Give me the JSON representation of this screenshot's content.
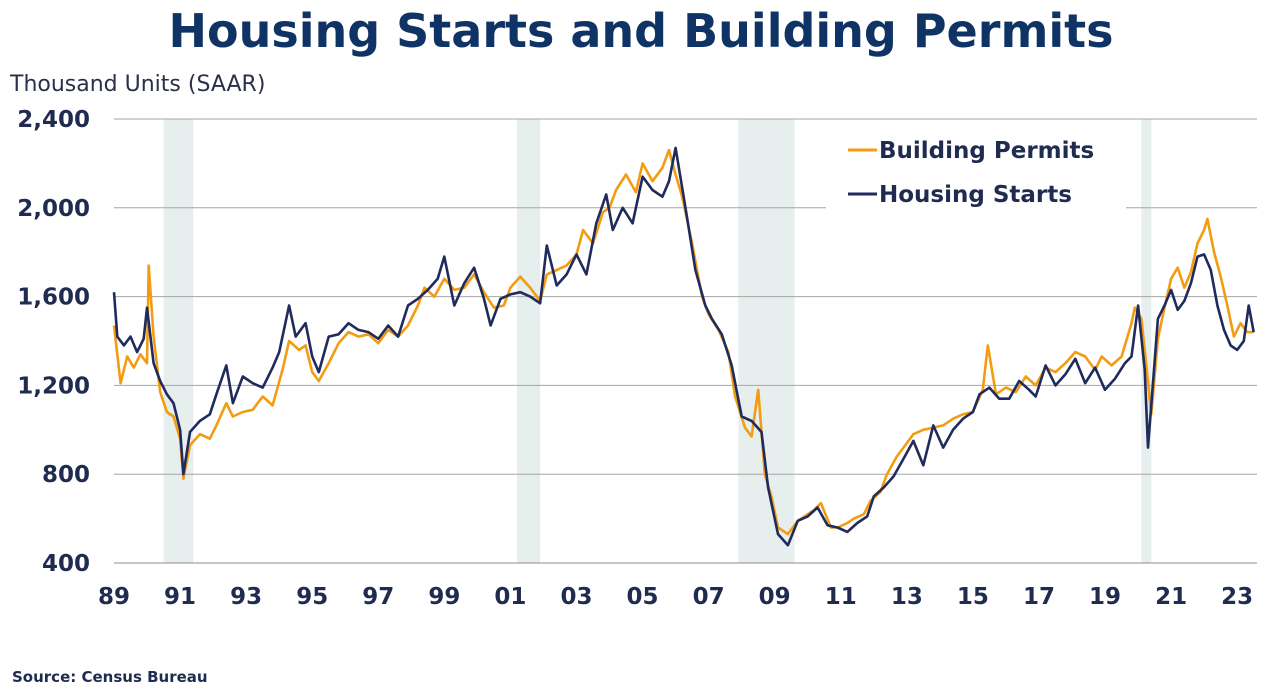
{
  "chart_data": {
    "type": "line",
    "title": "Housing Starts and Building Permits",
    "ylabel": "Thousand Units (SAAR)",
    "xlabel": "",
    "source": "Source: Census Bureau",
    "ylim": [
      400,
      2400
    ],
    "xlim": [
      1989.0,
      2023.6
    ],
    "y_ticks": [
      "400",
      "800",
      "1,200",
      "1,600",
      "2,000",
      "2,400"
    ],
    "x_ticks": [
      "89",
      "91",
      "93",
      "95",
      "97",
      "99",
      "01",
      "03",
      "05",
      "07",
      "09",
      "11",
      "13",
      "15",
      "17",
      "19",
      "21",
      "23"
    ],
    "grid": "horizontal",
    "legend_position": "top-right",
    "recessions": [
      [
        1990.5,
        1991.4
      ],
      [
        2001.2,
        2001.9
      ],
      [
        2007.9,
        2009.6
      ],
      [
        2020.1,
        2020.4
      ]
    ],
    "series": [
      {
        "name": "Building Permits",
        "color": "#f39c12",
        "points": [
          [
            1989.0,
            1470
          ],
          [
            1989.2,
            1210
          ],
          [
            1989.4,
            1330
          ],
          [
            1989.6,
            1280
          ],
          [
            1989.8,
            1340
          ],
          [
            1990.0,
            1300
          ],
          [
            1990.05,
            1740
          ],
          [
            1990.2,
            1420
          ],
          [
            1990.4,
            1170
          ],
          [
            1990.6,
            1080
          ],
          [
            1990.8,
            1060
          ],
          [
            1991.0,
            960
          ],
          [
            1991.1,
            780
          ],
          [
            1991.3,
            930
          ],
          [
            1991.6,
            980
          ],
          [
            1991.9,
            960
          ],
          [
            1992.1,
            1020
          ],
          [
            1992.4,
            1120
          ],
          [
            1992.6,
            1060
          ],
          [
            1992.9,
            1080
          ],
          [
            1993.2,
            1090
          ],
          [
            1993.5,
            1150
          ],
          [
            1993.8,
            1110
          ],
          [
            1994.1,
            1270
          ],
          [
            1994.3,
            1400
          ],
          [
            1994.6,
            1360
          ],
          [
            1994.8,
            1380
          ],
          [
            1995.0,
            1260
          ],
          [
            1995.2,
            1220
          ],
          [
            1995.5,
            1300
          ],
          [
            1995.8,
            1390
          ],
          [
            1996.1,
            1440
          ],
          [
            1996.4,
            1420
          ],
          [
            1996.7,
            1430
          ],
          [
            1997.0,
            1390
          ],
          [
            1997.3,
            1450
          ],
          [
            1997.6,
            1420
          ],
          [
            1997.9,
            1470
          ],
          [
            1998.2,
            1560
          ],
          [
            1998.4,
            1640
          ],
          [
            1998.7,
            1600
          ],
          [
            1999.0,
            1680
          ],
          [
            1999.3,
            1630
          ],
          [
            1999.6,
            1640
          ],
          [
            1999.9,
            1700
          ],
          [
            2000.2,
            1620
          ],
          [
            2000.5,
            1550
          ],
          [
            2000.8,
            1560
          ],
          [
            2001.0,
            1640
          ],
          [
            2001.3,
            1690
          ],
          [
            2001.6,
            1640
          ],
          [
            2001.9,
            1580
          ],
          [
            2002.1,
            1700
          ],
          [
            2002.4,
            1720
          ],
          [
            2002.7,
            1740
          ],
          [
            2003.0,
            1790
          ],
          [
            2003.2,
            1900
          ],
          [
            2003.5,
            1840
          ],
          [
            2003.8,
            1980
          ],
          [
            2004.0,
            2000
          ],
          [
            2004.2,
            2080
          ],
          [
            2004.5,
            2150
          ],
          [
            2004.8,
            2070
          ],
          [
            2005.0,
            2200
          ],
          [
            2005.3,
            2120
          ],
          [
            2005.6,
            2180
          ],
          [
            2005.8,
            2260
          ],
          [
            2006.0,
            2150
          ],
          [
            2006.2,
            2050
          ],
          [
            2006.5,
            1840
          ],
          [
            2006.8,
            1600
          ],
          [
            2007.0,
            1520
          ],
          [
            2007.3,
            1450
          ],
          [
            2007.6,
            1350
          ],
          [
            2007.8,
            1150
          ],
          [
            2008.1,
            1010
          ],
          [
            2008.3,
            970
          ],
          [
            2008.5,
            1180
          ],
          [
            2008.7,
            800
          ],
          [
            2008.9,
            700
          ],
          [
            2009.1,
            560
          ],
          [
            2009.4,
            530
          ],
          [
            2009.7,
            590
          ],
          [
            2009.9,
            610
          ],
          [
            2010.2,
            640
          ],
          [
            2010.4,
            670
          ],
          [
            2010.7,
            560
          ],
          [
            2010.9,
            560
          ],
          [
            2011.2,
            580
          ],
          [
            2011.4,
            600
          ],
          [
            2011.7,
            620
          ],
          [
            2011.9,
            680
          ],
          [
            2012.2,
            720
          ],
          [
            2012.4,
            800
          ],
          [
            2012.7,
            880
          ],
          [
            2012.9,
            920
          ],
          [
            2013.2,
            980
          ],
          [
            2013.5,
            1000
          ],
          [
            2013.8,
            1010
          ],
          [
            2014.1,
            1020
          ],
          [
            2014.4,
            1050
          ],
          [
            2014.7,
            1070
          ],
          [
            2015.0,
            1080
          ],
          [
            2015.3,
            1180
          ],
          [
            2015.45,
            1380
          ],
          [
            2015.7,
            1160
          ],
          [
            2016.0,
            1190
          ],
          [
            2016.3,
            1170
          ],
          [
            2016.6,
            1240
          ],
          [
            2016.9,
            1200
          ],
          [
            2017.2,
            1280
          ],
          [
            2017.5,
            1260
          ],
          [
            2017.8,
            1300
          ],
          [
            2018.1,
            1350
          ],
          [
            2018.4,
            1330
          ],
          [
            2018.7,
            1270
          ],
          [
            2018.9,
            1330
          ],
          [
            2019.2,
            1290
          ],
          [
            2019.5,
            1330
          ],
          [
            2019.8,
            1480
          ],
          [
            2019.9,
            1550
          ],
          [
            2020.1,
            1500
          ],
          [
            2020.2,
            1360
          ],
          [
            2020.4,
            1070
          ],
          [
            2020.6,
            1410
          ],
          [
            2020.8,
            1550
          ],
          [
            2021.0,
            1680
          ],
          [
            2021.2,
            1730
          ],
          [
            2021.4,
            1640
          ],
          [
            2021.6,
            1710
          ],
          [
            2021.8,
            1840
          ],
          [
            2022.0,
            1900
          ],
          [
            2022.1,
            1950
          ],
          [
            2022.3,
            1800
          ],
          [
            2022.5,
            1690
          ],
          [
            2022.7,
            1560
          ],
          [
            2022.9,
            1420
          ],
          [
            2023.1,
            1480
          ],
          [
            2023.3,
            1440
          ],
          [
            2023.5,
            1440
          ]
        ]
      },
      {
        "name": "Housing Starts",
        "color": "#1f2b5c",
        "points": [
          [
            1989.0,
            1620
          ],
          [
            1989.1,
            1420
          ],
          [
            1989.3,
            1380
          ],
          [
            1989.5,
            1420
          ],
          [
            1989.7,
            1350
          ],
          [
            1989.9,
            1410
          ],
          [
            1990.0,
            1550
          ],
          [
            1990.2,
            1300
          ],
          [
            1990.4,
            1220
          ],
          [
            1990.6,
            1160
          ],
          [
            1990.8,
            1120
          ],
          [
            1991.0,
            1000
          ],
          [
            1991.1,
            800
          ],
          [
            1991.3,
            990
          ],
          [
            1991.6,
            1040
          ],
          [
            1991.9,
            1070
          ],
          [
            1992.1,
            1160
          ],
          [
            1992.4,
            1290
          ],
          [
            1992.6,
            1120
          ],
          [
            1992.9,
            1240
          ],
          [
            1993.2,
            1210
          ],
          [
            1993.5,
            1190
          ],
          [
            1993.8,
            1280
          ],
          [
            1994.0,
            1350
          ],
          [
            1994.3,
            1560
          ],
          [
            1994.5,
            1420
          ],
          [
            1994.8,
            1480
          ],
          [
            1995.0,
            1330
          ],
          [
            1995.2,
            1260
          ],
          [
            1995.5,
            1420
          ],
          [
            1995.8,
            1430
          ],
          [
            1996.1,
            1480
          ],
          [
            1996.4,
            1450
          ],
          [
            1996.7,
            1440
          ],
          [
            1997.0,
            1410
          ],
          [
            1997.3,
            1470
          ],
          [
            1997.6,
            1420
          ],
          [
            1997.9,
            1560
          ],
          [
            1998.2,
            1590
          ],
          [
            1998.5,
            1630
          ],
          [
            1998.8,
            1680
          ],
          [
            1999.0,
            1780
          ],
          [
            1999.3,
            1560
          ],
          [
            1999.6,
            1660
          ],
          [
            1999.9,
            1730
          ],
          [
            2000.2,
            1590
          ],
          [
            2000.4,
            1470
          ],
          [
            2000.7,
            1590
          ],
          [
            2001.0,
            1610
          ],
          [
            2001.3,
            1620
          ],
          [
            2001.6,
            1600
          ],
          [
            2001.9,
            1570
          ],
          [
            2002.1,
            1830
          ],
          [
            2002.4,
            1650
          ],
          [
            2002.7,
            1700
          ],
          [
            2003.0,
            1790
          ],
          [
            2003.3,
            1700
          ],
          [
            2003.6,
            1930
          ],
          [
            2003.9,
            2060
          ],
          [
            2004.1,
            1900
          ],
          [
            2004.4,
            2000
          ],
          [
            2004.7,
            1930
          ],
          [
            2005.0,
            2140
          ],
          [
            2005.3,
            2080
          ],
          [
            2005.6,
            2050
          ],
          [
            2005.8,
            2120
          ],
          [
            2006.0,
            2270
          ],
          [
            2006.3,
            2000
          ],
          [
            2006.6,
            1720
          ],
          [
            2006.9,
            1560
          ],
          [
            2007.1,
            1500
          ],
          [
            2007.4,
            1430
          ],
          [
            2007.7,
            1290
          ],
          [
            2008.0,
            1060
          ],
          [
            2008.3,
            1040
          ],
          [
            2008.6,
            990
          ],
          [
            2008.8,
            740
          ],
          [
            2009.1,
            530
          ],
          [
            2009.4,
            480
          ],
          [
            2009.7,
            590
          ],
          [
            2010.0,
            610
          ],
          [
            2010.3,
            650
          ],
          [
            2010.6,
            570
          ],
          [
            2010.9,
            560
          ],
          [
            2011.2,
            540
          ],
          [
            2011.5,
            580
          ],
          [
            2011.8,
            610
          ],
          [
            2012.0,
            700
          ],
          [
            2012.3,
            740
          ],
          [
            2012.6,
            790
          ],
          [
            2012.9,
            870
          ],
          [
            2013.2,
            950
          ],
          [
            2013.5,
            840
          ],
          [
            2013.8,
            1020
          ],
          [
            2014.1,
            920
          ],
          [
            2014.4,
            1000
          ],
          [
            2014.7,
            1050
          ],
          [
            2015.0,
            1080
          ],
          [
            2015.2,
            1160
          ],
          [
            2015.5,
            1190
          ],
          [
            2015.8,
            1140
          ],
          [
            2016.1,
            1140
          ],
          [
            2016.4,
            1220
          ],
          [
            2016.7,
            1180
          ],
          [
            2016.9,
            1150
          ],
          [
            2017.2,
            1290
          ],
          [
            2017.5,
            1200
          ],
          [
            2017.8,
            1250
          ],
          [
            2018.1,
            1320
          ],
          [
            2018.4,
            1210
          ],
          [
            2018.7,
            1280
          ],
          [
            2019.0,
            1180
          ],
          [
            2019.3,
            1230
          ],
          [
            2019.6,
            1300
          ],
          [
            2019.8,
            1330
          ],
          [
            2020.0,
            1560
          ],
          [
            2020.2,
            1270
          ],
          [
            2020.3,
            920
          ],
          [
            2020.6,
            1500
          ],
          [
            2020.8,
            1560
          ],
          [
            2021.0,
            1630
          ],
          [
            2021.2,
            1540
          ],
          [
            2021.4,
            1580
          ],
          [
            2021.6,
            1660
          ],
          [
            2021.8,
            1780
          ],
          [
            2022.0,
            1790
          ],
          [
            2022.2,
            1720
          ],
          [
            2022.4,
            1560
          ],
          [
            2022.6,
            1450
          ],
          [
            2022.8,
            1380
          ],
          [
            2023.0,
            1360
          ],
          [
            2023.2,
            1400
          ],
          [
            2023.35,
            1560
          ],
          [
            2023.5,
            1440
          ]
        ]
      }
    ]
  }
}
